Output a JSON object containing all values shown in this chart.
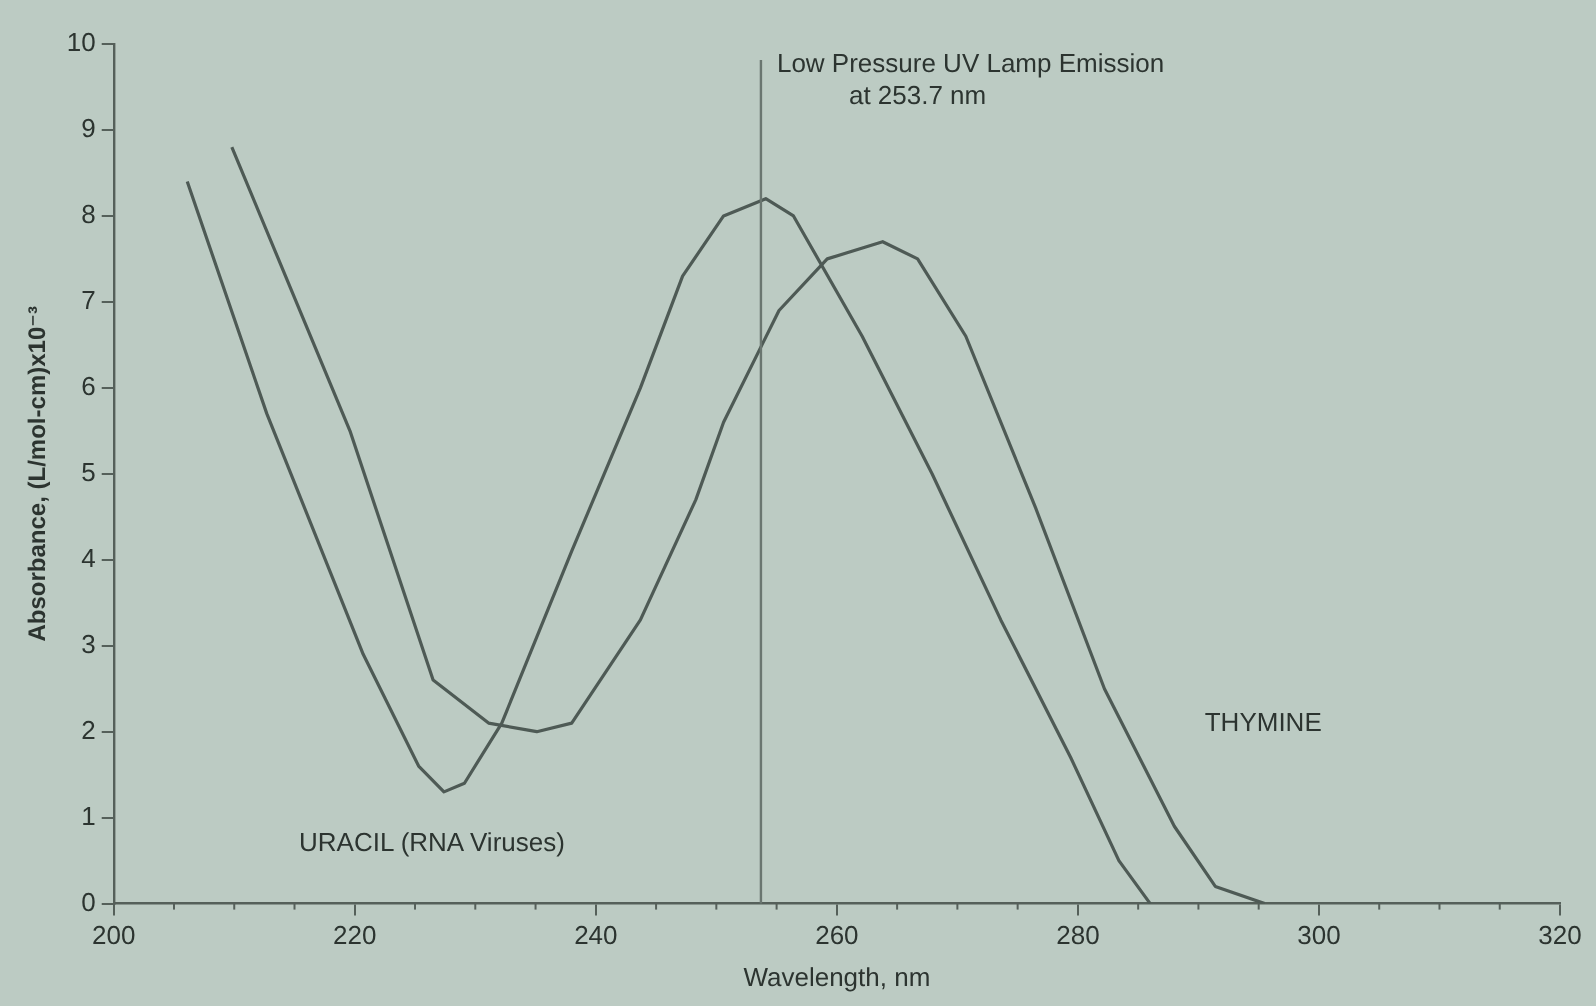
{
  "chart_data": {
    "type": "line",
    "xlabel": "Wavelength, nm",
    "ylabel": "Absorbance, (L/mol-cm)x10⁻³",
    "xlim": [
      200,
      320
    ],
    "xticks": [
      200,
      220,
      240,
      260,
      280,
      300,
      320
    ],
    "ylim": [
      0,
      10
    ],
    "yticks": [
      0,
      1,
      2,
      3,
      4,
      5,
      6,
      7,
      8,
      9,
      10
    ],
    "grid": false,
    "legend": false,
    "marker": "none",
    "line_style": "solid",
    "ref_lines": [
      {
        "axis": "x",
        "value": 253.7,
        "label": "Low Pressure UV Lamp Emission\nat 253.7 nm",
        "color": "#6a7670"
      }
    ],
    "series": [
      {
        "name": "URACIL (RNA Viruses)",
        "color": "#4e5a55",
        "x": [
          206.1,
          212.7,
          220.7,
          225.3,
          227.4,
          229.1,
          232.2,
          238,
          243.7,
          247.2,
          250.6,
          254.1,
          256.4,
          262.1,
          267.9,
          273.6,
          279.4,
          283.4,
          286
        ],
        "values": [
          8.4,
          5.7,
          2.9,
          1.6,
          1.3,
          1.4,
          2.1,
          4.1,
          6.0,
          7.3,
          8.0,
          8.2,
          8.0,
          6.6,
          5.0,
          3.3,
          1.7,
          0.5,
          0
        ]
      },
      {
        "name": "THYMINE",
        "color": "#4e5a55",
        "x": [
          209.8,
          219.6,
          226.5,
          231.1,
          235.1,
          238,
          243.7,
          248.3,
          250.6,
          255.2,
          259.2,
          263.8,
          266.7,
          270.7,
          276.5,
          282.2,
          288,
          291.4,
          295.5
        ],
        "values": [
          8.8,
          5.5,
          2.6,
          2.1,
          2.0,
          2.1,
          3.3,
          4.7,
          5.6,
          6.9,
          7.5,
          7.7,
          7.5,
          6.6,
          4.6,
          2.5,
          0.9,
          0.2,
          0
        ]
      }
    ]
  }
}
